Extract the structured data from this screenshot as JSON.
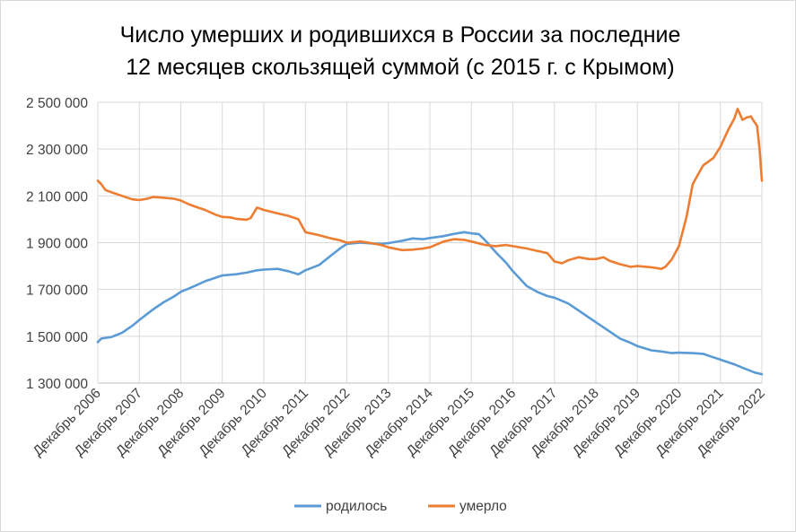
{
  "chart_data": {
    "type": "line",
    "title_line1": "Число умерших и родившихся в России за последние",
    "title_line2": "12 месяцев скользящей суммой (с 2015 г. с Крымом)",
    "xlabel": "",
    "ylabel": "",
    "ylim": [
      1300000,
      2500000
    ],
    "yticks": [
      1300000,
      1500000,
      1700000,
      1900000,
      2100000,
      2300000,
      2500000
    ],
    "ytick_labels": [
      "1 300 000",
      "1 500 000",
      "1 700 000",
      "1 900 000",
      "2 100 000",
      "2 300 000",
      "2 500 000"
    ],
    "xlim": [
      2006.917,
      2022.917
    ],
    "xticks": [
      2006.917,
      2007.917,
      2008.917,
      2009.917,
      2010.917,
      2011.917,
      2012.917,
      2013.917,
      2014.917,
      2015.917,
      2016.917,
      2017.917,
      2018.917,
      2019.917,
      2020.917,
      2021.917,
      2022.917
    ],
    "xtick_labels": [
      "Декабрь 2006",
      "Декабрь 2007",
      "Декабрь 2008",
      "Декабрь 2009",
      "Декабрь 2010",
      "Декабрь 2011",
      "Декабрь 2012",
      "Декабрь 2013",
      "Декабрь 2014",
      "Декабрь 2015",
      "Декабрь 2016",
      "Декабрь 2017",
      "Декабрь 2018",
      "Декабрь 2019",
      "Декабрь 2020",
      "Декабрь 2021",
      "Декабрь 2022"
    ],
    "grid": true,
    "legend_position": "bottom",
    "series": [
      {
        "name": "родилось",
        "color": "#5b9bd5",
        "points": [
          [
            2006.917,
            1475000
          ],
          [
            2007.0,
            1490000
          ],
          [
            2007.25,
            1497000
          ],
          [
            2007.5,
            1515000
          ],
          [
            2007.75,
            1545000
          ],
          [
            2007.917,
            1570000
          ],
          [
            2008.25,
            1615000
          ],
          [
            2008.5,
            1645000
          ],
          [
            2008.75,
            1670000
          ],
          [
            2008.917,
            1690000
          ],
          [
            2009.25,
            1715000
          ],
          [
            2009.5,
            1735000
          ],
          [
            2009.75,
            1750000
          ],
          [
            2009.917,
            1760000
          ],
          [
            2010.25,
            1765000
          ],
          [
            2010.5,
            1772000
          ],
          [
            2010.75,
            1782000
          ],
          [
            2010.917,
            1785000
          ],
          [
            2011.25,
            1788000
          ],
          [
            2011.5,
            1778000
          ],
          [
            2011.75,
            1765000
          ],
          [
            2011.917,
            1782000
          ],
          [
            2012.25,
            1805000
          ],
          [
            2012.5,
            1840000
          ],
          [
            2012.75,
            1875000
          ],
          [
            2012.917,
            1895000
          ],
          [
            2013.25,
            1900000
          ],
          [
            2013.5,
            1897000
          ],
          [
            2013.75,
            1895000
          ],
          [
            2013.917,
            1898000
          ],
          [
            2014.25,
            1908000
          ],
          [
            2014.5,
            1918000
          ],
          [
            2014.75,
            1915000
          ],
          [
            2014.917,
            1920000
          ],
          [
            2015.25,
            1928000
          ],
          [
            2015.5,
            1938000
          ],
          [
            2015.75,
            1945000
          ],
          [
            2015.917,
            1940000
          ],
          [
            2016.1,
            1936000
          ],
          [
            2016.25,
            1910000
          ],
          [
            2016.5,
            1860000
          ],
          [
            2016.75,
            1815000
          ],
          [
            2016.917,
            1778000
          ],
          [
            2017.25,
            1715000
          ],
          [
            2017.5,
            1690000
          ],
          [
            2017.75,
            1672000
          ],
          [
            2017.917,
            1665000
          ],
          [
            2018.25,
            1640000
          ],
          [
            2018.5,
            1610000
          ],
          [
            2018.75,
            1580000
          ],
          [
            2018.917,
            1560000
          ],
          [
            2019.25,
            1520000
          ],
          [
            2019.5,
            1490000
          ],
          [
            2019.75,
            1472000
          ],
          [
            2019.917,
            1458000
          ],
          [
            2020.25,
            1440000
          ],
          [
            2020.5,
            1435000
          ],
          [
            2020.75,
            1428000
          ],
          [
            2020.917,
            1430000
          ],
          [
            2021.25,
            1428000
          ],
          [
            2021.5,
            1425000
          ],
          [
            2021.75,
            1410000
          ],
          [
            2021.917,
            1400000
          ],
          [
            2022.25,
            1380000
          ],
          [
            2022.5,
            1362000
          ],
          [
            2022.75,
            1345000
          ],
          [
            2022.917,
            1338000
          ]
        ]
      },
      {
        "name": "умерло",
        "color": "#ed7d31",
        "points": [
          [
            2006.917,
            2165000
          ],
          [
            2007.0,
            2150000
          ],
          [
            2007.1,
            2125000
          ],
          [
            2007.25,
            2115000
          ],
          [
            2007.5,
            2100000
          ],
          [
            2007.75,
            2085000
          ],
          [
            2007.917,
            2082000
          ],
          [
            2008.1,
            2088000
          ],
          [
            2008.25,
            2095000
          ],
          [
            2008.5,
            2092000
          ],
          [
            2008.75,
            2088000
          ],
          [
            2008.917,
            2080000
          ],
          [
            2009.1,
            2065000
          ],
          [
            2009.25,
            2055000
          ],
          [
            2009.5,
            2040000
          ],
          [
            2009.75,
            2020000
          ],
          [
            2009.917,
            2010000
          ],
          [
            2010.1,
            2008000
          ],
          [
            2010.25,
            2002000
          ],
          [
            2010.5,
            1998000
          ],
          [
            2010.6,
            2005000
          ],
          [
            2010.75,
            2050000
          ],
          [
            2010.917,
            2040000
          ],
          [
            2011.25,
            2025000
          ],
          [
            2011.5,
            2015000
          ],
          [
            2011.75,
            2000000
          ],
          [
            2011.917,
            1945000
          ],
          [
            2012.25,
            1932000
          ],
          [
            2012.5,
            1920000
          ],
          [
            2012.75,
            1910000
          ],
          [
            2012.917,
            1900000
          ],
          [
            2013.25,
            1905000
          ],
          [
            2013.5,
            1898000
          ],
          [
            2013.75,
            1890000
          ],
          [
            2013.917,
            1880000
          ],
          [
            2014.25,
            1868000
          ],
          [
            2014.5,
            1870000
          ],
          [
            2014.75,
            1875000
          ],
          [
            2014.917,
            1880000
          ],
          [
            2015.25,
            1905000
          ],
          [
            2015.5,
            1915000
          ],
          [
            2015.75,
            1912000
          ],
          [
            2015.917,
            1905000
          ],
          [
            2016.25,
            1890000
          ],
          [
            2016.5,
            1885000
          ],
          [
            2016.75,
            1890000
          ],
          [
            2016.917,
            1885000
          ],
          [
            2017.25,
            1875000
          ],
          [
            2017.5,
            1865000
          ],
          [
            2017.75,
            1855000
          ],
          [
            2017.917,
            1820000
          ],
          [
            2018.1,
            1812000
          ],
          [
            2018.25,
            1825000
          ],
          [
            2018.5,
            1838000
          ],
          [
            2018.75,
            1830000
          ],
          [
            2018.917,
            1830000
          ],
          [
            2019.1,
            1838000
          ],
          [
            2019.25,
            1822000
          ],
          [
            2019.5,
            1808000
          ],
          [
            2019.75,
            1797000
          ],
          [
            2019.917,
            1800000
          ],
          [
            2020.25,
            1795000
          ],
          [
            2020.5,
            1788000
          ],
          [
            2020.6,
            1798000
          ],
          [
            2020.75,
            1830000
          ],
          [
            2020.917,
            1885000
          ],
          [
            2021.1,
            2010000
          ],
          [
            2021.25,
            2150000
          ],
          [
            2021.5,
            2230000
          ],
          [
            2021.75,
            2262000
          ],
          [
            2021.917,
            2310000
          ],
          [
            2022.1,
            2380000
          ],
          [
            2022.25,
            2430000
          ],
          [
            2022.33,
            2472000
          ],
          [
            2022.45,
            2425000
          ],
          [
            2022.55,
            2435000
          ],
          [
            2022.65,
            2440000
          ],
          [
            2022.72,
            2420000
          ],
          [
            2022.8,
            2400000
          ],
          [
            2022.86,
            2300000
          ],
          [
            2022.917,
            2165000
          ]
        ]
      }
    ]
  }
}
